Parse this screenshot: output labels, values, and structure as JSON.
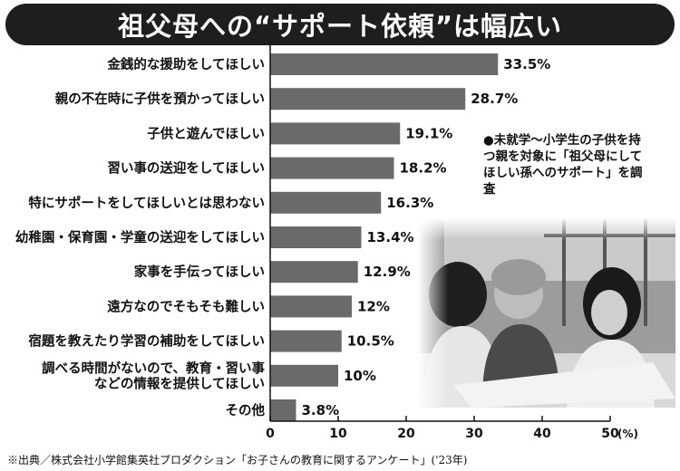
{
  "title": "祖父母への“サポート依頼”は幅広い",
  "note": "●未就学～小学生の子供を持つ親を対象に「祖父母にしてほしい孫へのサポート」を調査",
  "source": "※出典／株式会社小学館集英社プロダクション「お子さんの教育に関するアンケート」('23年)",
  "chart_data": {
    "type": "bar",
    "orientation": "horizontal",
    "categories": [
      "金銭的な援助をしてほしい",
      "親の不在時に子供を預かってほしい",
      "子供と遊んでほしい",
      "習い事の送迎をしてほしい",
      "特にサポートをしてほしいとは思わない",
      "幼稚園・保育園・学童の送迎をしてほしい",
      "家事を手伝ってほしい",
      "遠方なのでそもそも難しい",
      "宿題を教えたり学習の補助をしてほしい",
      "調べる時間がないので、教育・習い事などの情報を提供してほしい",
      "その他"
    ],
    "category_lines": [
      [
        "金銭的な援助をしてほしい"
      ],
      [
        "親の不在時に子供を預かってほしい"
      ],
      [
        "子供と遊んでほしい"
      ],
      [
        "習い事の送迎をしてほしい"
      ],
      [
        "特にサポートをしてほしいとは思わない"
      ],
      [
        "幼稚園・保育園・学童の送迎をしてほしい"
      ],
      [
        "家事を手伝ってほしい"
      ],
      [
        "遠方なのでそもそも難しい"
      ],
      [
        "宿題を教えたり学習の補助をしてほしい"
      ],
      [
        "調べる時間がないので、教育・習い事",
        "などの情報を提供してほしい"
      ],
      [
        "その他"
      ]
    ],
    "values": [
      33.5,
      28.7,
      19.1,
      18.2,
      16.3,
      13.4,
      12.9,
      12,
      10.5,
      10,
      3.8
    ],
    "value_labels": [
      "33.5%",
      "28.7%",
      "19.1%",
      "18.2%",
      "16.3%",
      "13.4%",
      "12.9%",
      "12%",
      "10.5%",
      "10%",
      "3.8%"
    ],
    "xlim": [
      0,
      50
    ],
    "xticks": [
      0,
      10,
      20,
      30,
      40,
      50
    ],
    "x_unit": "(%)",
    "bar_color": "#6a6a6a",
    "grid": false
  }
}
